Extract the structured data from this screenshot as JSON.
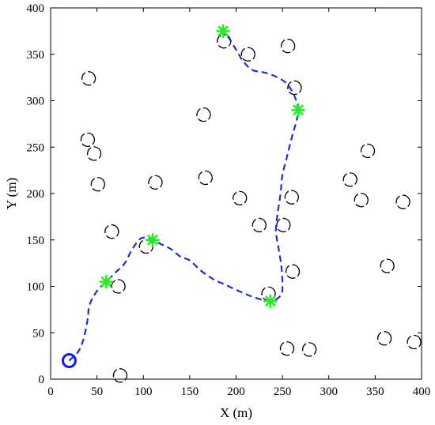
{
  "chart_data": {
    "type": "scatter",
    "title": "",
    "xlabel": "X (m)",
    "ylabel": "Y (m)",
    "xlim": [
      0,
      400
    ],
    "ylim": [
      0,
      400
    ],
    "xticks": [
      0,
      50,
      100,
      150,
      200,
      250,
      300,
      350,
      400
    ],
    "yticks": [
      0,
      50,
      100,
      150,
      200,
      250,
      300,
      350,
      400
    ],
    "grid": false,
    "colors": {
      "path": "#1a2fd4",
      "start": "#0a1ee8",
      "waypoint": "#22ee22",
      "obstacle": "#000000"
    },
    "start": {
      "x": 20,
      "y": 20,
      "marker": "open-circle"
    },
    "waypoints": [
      {
        "x": 60,
        "y": 105
      },
      {
        "x": 110,
        "y": 150
      },
      {
        "x": 237,
        "y": 84
      },
      {
        "x": 267,
        "y": 290
      },
      {
        "x": 186,
        "y": 375
      }
    ],
    "path": [
      [
        20,
        20
      ],
      [
        30,
        30
      ],
      [
        36,
        45
      ],
      [
        40,
        65
      ],
      [
        42,
        80
      ],
      [
        50,
        95
      ],
      [
        60,
        105
      ],
      [
        70,
        115
      ],
      [
        80,
        125
      ],
      [
        88,
        140
      ],
      [
        98,
        152
      ],
      [
        110,
        150
      ],
      [
        120,
        145
      ],
      [
        130,
        140
      ],
      [
        140,
        132
      ],
      [
        150,
        128
      ],
      [
        162,
        117
      ],
      [
        175,
        108
      ],
      [
        190,
        101
      ],
      [
        205,
        94
      ],
      [
        220,
        88
      ],
      [
        237,
        84
      ],
      [
        248,
        90
      ],
      [
        250,
        100
      ],
      [
        249,
        120
      ],
      [
        246,
        140
      ],
      [
        243,
        160
      ],
      [
        245,
        180
      ],
      [
        248,
        200
      ],
      [
        250,
        220
      ],
      [
        255,
        240
      ],
      [
        260,
        260
      ],
      [
        265,
        278
      ],
      [
        267,
        290
      ],
      [
        263,
        305
      ],
      [
        255,
        318
      ],
      [
        245,
        325
      ],
      [
        232,
        330
      ],
      [
        218,
        333
      ],
      [
        208,
        342
      ],
      [
        200,
        355
      ],
      [
        192,
        368
      ],
      [
        186,
        375
      ]
    ],
    "obstacles": [
      {
        "x": 41,
        "y": 324
      },
      {
        "x": 40,
        "y": 258
      },
      {
        "x": 47,
        "y": 243
      },
      {
        "x": 51,
        "y": 210
      },
      {
        "x": 66,
        "y": 159
      },
      {
        "x": 73,
        "y": 100
      },
      {
        "x": 75,
        "y": 4
      },
      {
        "x": 103,
        "y": 143
      },
      {
        "x": 113,
        "y": 212
      },
      {
        "x": 165,
        "y": 285
      },
      {
        "x": 167,
        "y": 217
      },
      {
        "x": 187,
        "y": 364
      },
      {
        "x": 213,
        "y": 350
      },
      {
        "x": 204,
        "y": 195
      },
      {
        "x": 225,
        "y": 166
      },
      {
        "x": 235,
        "y": 92
      },
      {
        "x": 251,
        "y": 166
      },
      {
        "x": 255,
        "y": 33
      },
      {
        "x": 256,
        "y": 359
      },
      {
        "x": 260,
        "y": 196
      },
      {
        "x": 261,
        "y": 116
      },
      {
        "x": 263,
        "y": 314
      },
      {
        "x": 279,
        "y": 32
      },
      {
        "x": 323,
        "y": 215
      },
      {
        "x": 335,
        "y": 193
      },
      {
        "x": 342,
        "y": 246
      },
      {
        "x": 360,
        "y": 44
      },
      {
        "x": 363,
        "y": 122
      },
      {
        "x": 380,
        "y": 191
      },
      {
        "x": 392,
        "y": 40
      }
    ]
  }
}
